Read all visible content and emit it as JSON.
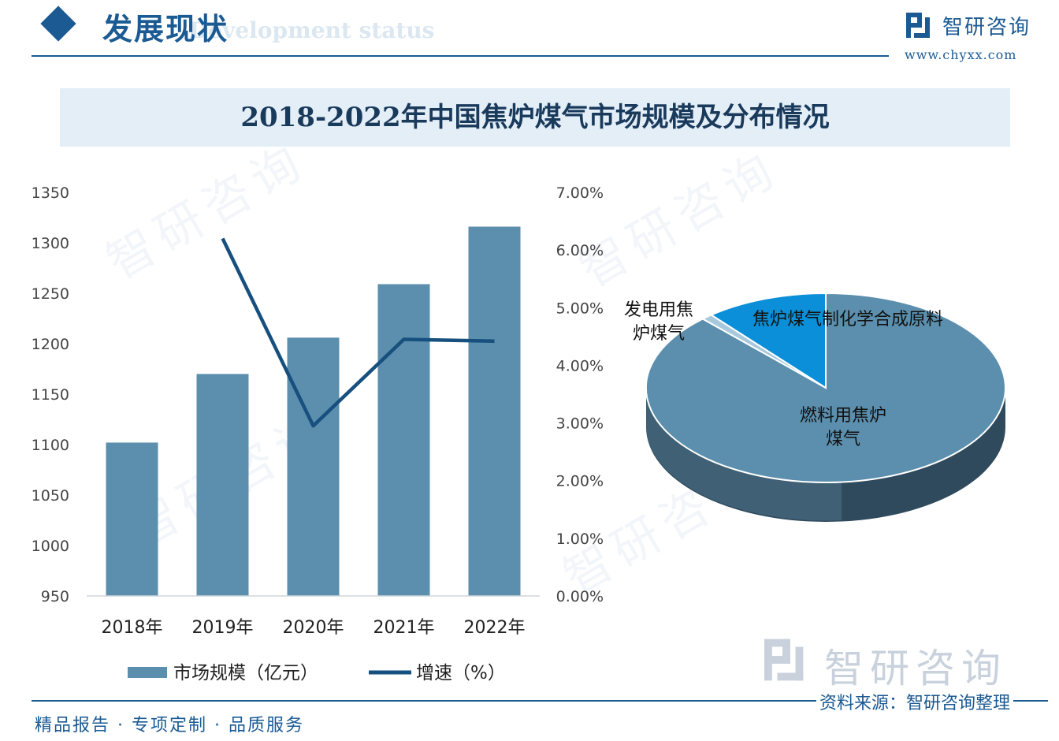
{
  "header": {
    "title": "发展现状",
    "subtitle": "Development status"
  },
  "brand": {
    "name": "智研咨询",
    "url": "www.chyxx.com"
  },
  "chart_data": [
    {
      "type": "bar+line",
      "title": "2018-2022年中国焦炉煤气市场规模及分布情况",
      "categories": [
        "2018年",
        "2019年",
        "2020年",
        "2021年",
        "2022年"
      ],
      "series": [
        {
          "name": "市场规模（亿元）",
          "type": "bar",
          "axis": "left",
          "values": [
            1102,
            1170,
            1206,
            1259,
            1316
          ]
        },
        {
          "name": "增速（%）",
          "type": "line",
          "axis": "right",
          "values": [
            null,
            6.2,
            2.95,
            4.45,
            4.42
          ]
        }
      ],
      "ylim": [
        950,
        1350
      ],
      "yticks": [
        "1350",
        "1300",
        "1250",
        "1200",
        "1150",
        "1100",
        "1050",
        "1000",
        "950"
      ],
      "y2lim": [
        0,
        7
      ],
      "y2ticks": [
        "7.00%",
        "6.00%",
        "5.00%",
        "4.00%",
        "3.00%",
        "2.00%",
        "1.00%",
        "0.00%"
      ],
      "legend": "bottom",
      "colors": {
        "bar": "#5b8fad",
        "line": "#17507e"
      }
    },
    {
      "type": "pie",
      "slices": [
        {
          "label": "燃料用焦炉煤气",
          "label_lines": [
            "燃料用焦炉",
            "煤气"
          ],
          "value": 88,
          "color": "#5b8fad"
        },
        {
          "label": "焦炉煤气制化学合成原料",
          "label_lines": [
            "焦炉煤气制化学合成原料"
          ],
          "value": 11,
          "color": "#0a8fd8"
        },
        {
          "label": "发电用焦炉煤气",
          "label_lines": [
            "发电用焦",
            "炉煤气"
          ],
          "value": 1,
          "color": "#a8c8dc"
        }
      ]
    }
  ],
  "footer": {
    "slogan": "精品报告 · 专项定制 · 品质服务",
    "source": "资料来源：智研咨询整理",
    "logo_text": "智研咨询"
  }
}
